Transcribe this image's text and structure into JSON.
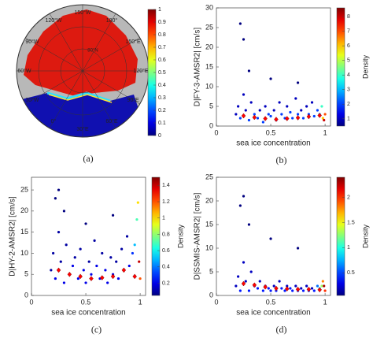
{
  "map": {
    "caption": "(a)",
    "lat_label": "80°N",
    "lon_labels": [
      "150°W",
      "180°",
      "150°E",
      "120°E",
      "90°E",
      "60°E",
      "30°E",
      "0°",
      "30°W",
      "60°W",
      "90°W",
      "120°W"
    ],
    "colormap": "jet",
    "clim": [
      0,
      1
    ],
    "cticks": [
      0,
      0.1,
      0.2,
      0.3,
      0.4,
      0.5,
      0.6,
      0.7,
      0.8,
      0.9,
      1
    ]
  },
  "chart_data": [
    {
      "type": "scatter",
      "caption": "(b)",
      "xlabel": "sea ice concentration",
      "ylabel": "D|FY-3-AMSR2| [cm/s]",
      "colorbar_label": "Density",
      "colormap": "jet",
      "xlim": [
        0,
        1.05
      ],
      "xticks": [
        0,
        0.5,
        1
      ],
      "ylim": [
        0,
        30
      ],
      "yticks": [
        0,
        5,
        10,
        15,
        20,
        25,
        30
      ],
      "clim": [
        0.5,
        8.6
      ],
      "cticks": [
        1,
        2,
        3,
        4,
        5,
        6,
        7,
        8
      ],
      "x": [
        0.18,
        0.2,
        0.22,
        0.25,
        0.27,
        0.3,
        0.32,
        0.35,
        0.38,
        0.4,
        0.43,
        0.45,
        0.48,
        0.5,
        0.53,
        0.55,
        0.58,
        0.6,
        0.63,
        0.65,
        0.68,
        0.7,
        0.73,
        0.75,
        0.78,
        0.8,
        0.83,
        0.85,
        0.88,
        0.9,
        0.93,
        0.95,
        0.97,
        0.98,
        0.99,
        1.0,
        0.22,
        0.25,
        0.3,
        0.5,
        0.75
      ],
      "y": [
        3,
        5,
        2,
        8,
        4,
        1.5,
        6,
        3,
        2,
        4,
        1,
        5,
        3,
        2.5,
        4,
        1.5,
        6,
        3,
        2,
        5,
        3.5,
        2,
        7,
        3,
        4,
        2,
        5,
        3,
        6,
        2.5,
        4,
        3,
        5,
        2,
        1.5,
        3,
        26,
        22,
        14,
        12,
        11
      ],
      "density": [
        1,
        1,
        2,
        1,
        1,
        2,
        1,
        2,
        2,
        1,
        2,
        1,
        2,
        2,
        1,
        2,
        1,
        2,
        2,
        1,
        2,
        2,
        1,
        2,
        1,
        2,
        1,
        2,
        1,
        2,
        2,
        3,
        4,
        6,
        8,
        7,
        0.5,
        0.5,
        0.5,
        0.5,
        0.5
      ],
      "mean_color": "#ff0000",
      "mean_x": [
        0.25,
        0.35,
        0.45,
        0.55,
        0.65,
        0.75,
        0.85,
        0.95
      ],
      "mean_y": [
        2.6,
        2.2,
        1.9,
        1.7,
        1.9,
        2.1,
        2.4,
        2.7
      ]
    },
    {
      "type": "scatter",
      "caption": "(c)",
      "xlabel": "sea ice concentration",
      "ylabel": "D|HY-2-AMSR2| [cm/s]",
      "colorbar_label": "Density",
      "colormap": "jet",
      "xlim": [
        0,
        1.05
      ],
      "xticks": [
        0,
        0.5,
        1
      ],
      "ylim": [
        0,
        28
      ],
      "yticks": [
        0,
        5,
        10,
        15,
        20,
        25
      ],
      "clim": [
        0.05,
        1.5
      ],
      "cticks": [
        0.2,
        0.4,
        0.6,
        0.8,
        1,
        1.2,
        1.4
      ],
      "x": [
        0.18,
        0.2,
        0.22,
        0.25,
        0.27,
        0.3,
        0.32,
        0.35,
        0.38,
        0.4,
        0.43,
        0.45,
        0.48,
        0.5,
        0.53,
        0.55,
        0.58,
        0.6,
        0.63,
        0.65,
        0.68,
        0.7,
        0.73,
        0.75,
        0.78,
        0.8,
        0.83,
        0.85,
        0.88,
        0.9,
        0.93,
        0.95,
        0.97,
        0.98,
        0.99,
        1.0,
        0.22,
        0.25,
        0.3,
        0.5,
        0.75
      ],
      "y": [
        6,
        10,
        4,
        15,
        8,
        3,
        12,
        5,
        7,
        9,
        4,
        11,
        6,
        3,
        8,
        5,
        13,
        7,
        4,
        10,
        6,
        3,
        9,
        5,
        8,
        4,
        11,
        6,
        14,
        7,
        10,
        12,
        18,
        22,
        8,
        4,
        23,
        25,
        20,
        17,
        19
      ],
      "density": [
        0.1,
        0.1,
        0.2,
        0.1,
        0.1,
        0.2,
        0.1,
        0.2,
        0.2,
        0.1,
        0.2,
        0.1,
        0.2,
        0.2,
        0.1,
        0.2,
        0.1,
        0.2,
        0.2,
        0.1,
        0.2,
        0.2,
        0.1,
        0.2,
        0.1,
        0.2,
        0.1,
        0.2,
        0.1,
        0.2,
        0.3,
        0.5,
        0.7,
        1.0,
        1.4,
        1.2,
        0.05,
        0.05,
        0.05,
        0.05,
        0.05
      ],
      "mean_color": "#ff0000",
      "mean_x": [
        0.25,
        0.35,
        0.45,
        0.55,
        0.65,
        0.75,
        0.85,
        0.95
      ],
      "mean_y": [
        6,
        5,
        4.5,
        4,
        4.2,
        4.5,
        6,
        4.5
      ]
    },
    {
      "type": "scatter",
      "caption": "(d)",
      "xlabel": "sea ice concentration",
      "ylabel": "D|SSMIS-AMSR2| [cm/s]",
      "colorbar_label": "Density",
      "colormap": "jet",
      "xlim": [
        0,
        1.05
      ],
      "xticks": [
        0,
        0.5,
        1
      ],
      "ylim": [
        0,
        25
      ],
      "yticks": [
        0,
        5,
        10,
        15,
        20,
        25
      ],
      "clim": [
        0.05,
        2.4
      ],
      "cticks": [
        0.5,
        1,
        1.5,
        2
      ],
      "x": [
        0.18,
        0.2,
        0.22,
        0.25,
        0.27,
        0.3,
        0.32,
        0.35,
        0.38,
        0.4,
        0.43,
        0.45,
        0.48,
        0.5,
        0.53,
        0.55,
        0.58,
        0.6,
        0.63,
        0.65,
        0.68,
        0.7,
        0.73,
        0.75,
        0.78,
        0.8,
        0.83,
        0.85,
        0.88,
        0.9,
        0.93,
        0.95,
        0.97,
        0.98,
        0.99,
        1.0,
        0.22,
        0.25,
        0.3,
        0.5,
        0.75
      ],
      "y": [
        2,
        4,
        1,
        7,
        3,
        1,
        5,
        2,
        1.5,
        3,
        1,
        2,
        1.5,
        1,
        2,
        1,
        3,
        1.5,
        1,
        2,
        1.5,
        1,
        2,
        1,
        1.5,
        1,
        2,
        1,
        1.5,
        1,
        2,
        1.5,
        2,
        3,
        2,
        1,
        19,
        21,
        15,
        12,
        10
      ],
      "density": [
        0.2,
        0.2,
        0.4,
        0.2,
        0.2,
        0.4,
        0.2,
        0.4,
        0.4,
        0.2,
        0.4,
        0.2,
        0.4,
        0.4,
        0.2,
        0.4,
        0.2,
        0.4,
        0.4,
        0.2,
        0.4,
        0.4,
        0.2,
        0.4,
        0.2,
        0.4,
        0.2,
        0.4,
        0.2,
        0.4,
        0.6,
        0.9,
        1.3,
        1.8,
        2.3,
        2.0,
        0.05,
        0.05,
        0.05,
        0.05,
        0.05
      ],
      "mean_color": "#ff0000",
      "mean_x": [
        0.25,
        0.35,
        0.45,
        0.55,
        0.65,
        0.75,
        0.85,
        0.95
      ],
      "mean_y": [
        2.5,
        2.2,
        1.8,
        1.5,
        1.4,
        1.3,
        1.3,
        1.2
      ]
    }
  ]
}
